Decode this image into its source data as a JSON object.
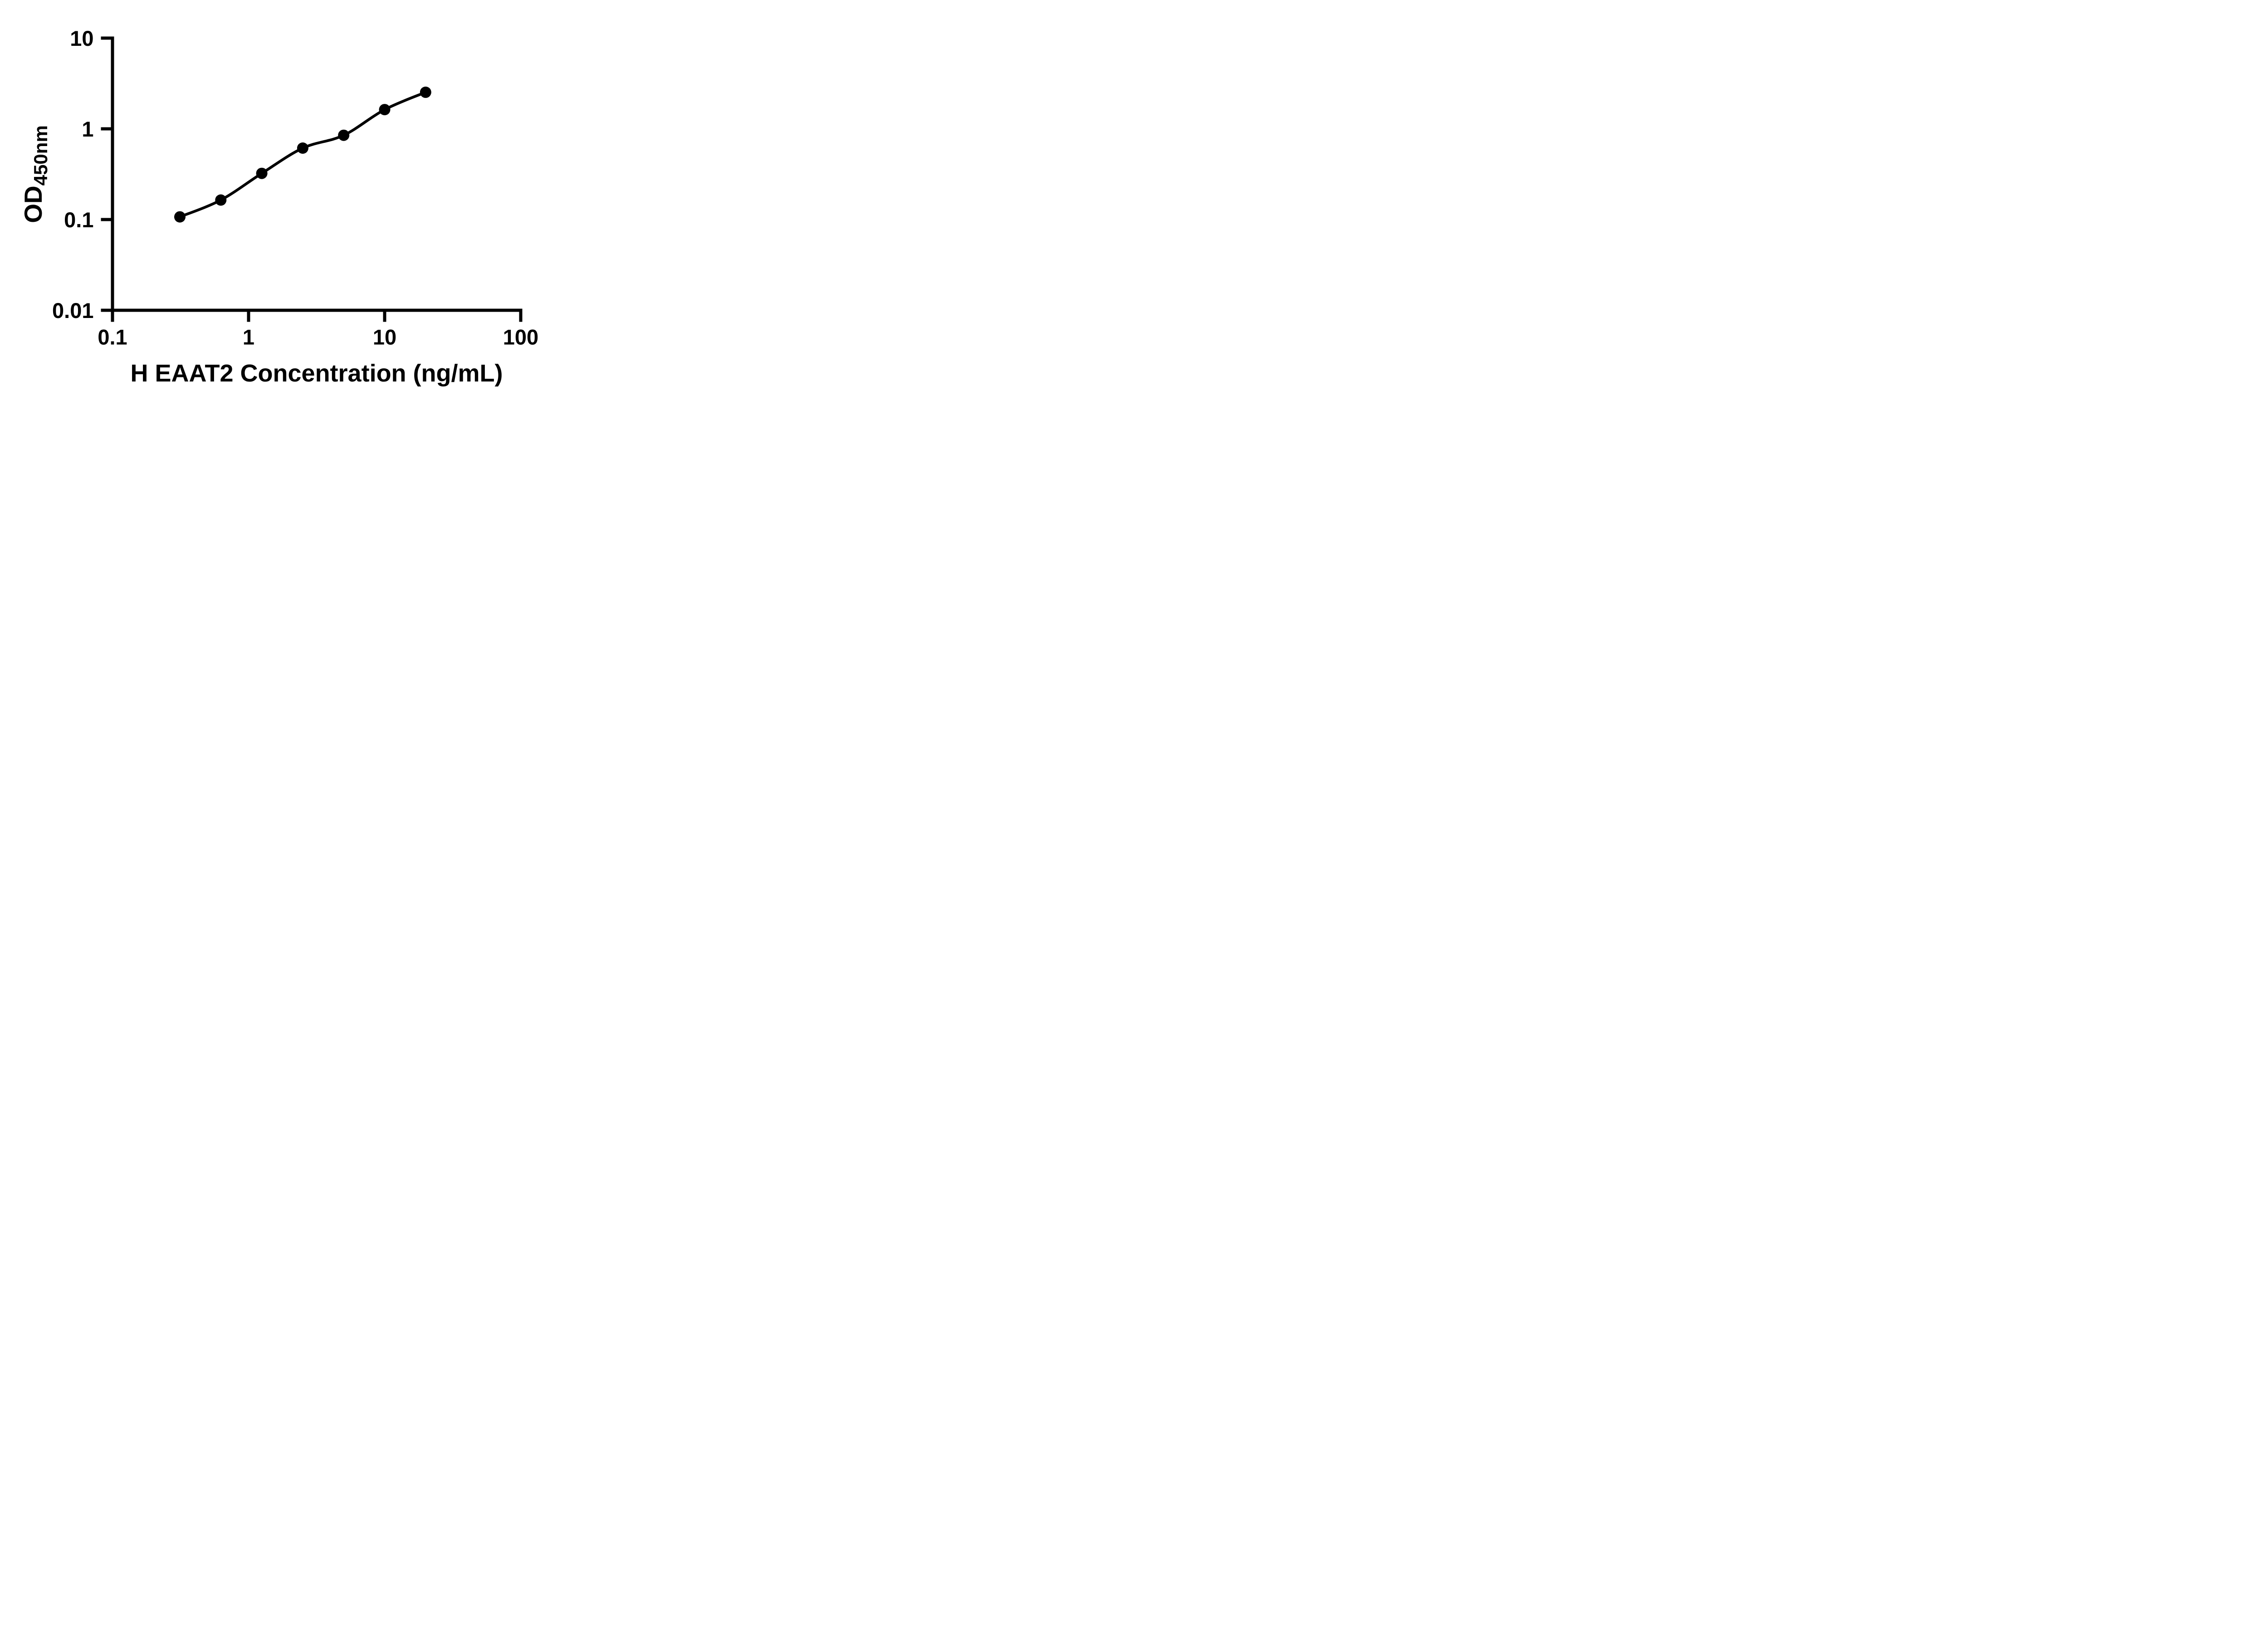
{
  "figure": {
    "background": "#ffffff",
    "ink_color": "#000000"
  },
  "chart_data": {
    "type": "scatter",
    "title": "",
    "xlabel": "H EAAT2 Concentration (ng/mL)",
    "ylabel": "OD450nm",
    "ylabel_main": "OD",
    "ylabel_sub": "450nm",
    "x_scale": "log",
    "y_scale": "log",
    "xlim": [
      0.1,
      100
    ],
    "ylim": [
      0.01,
      10
    ],
    "x_ticks": [
      0.1,
      1,
      10,
      100
    ],
    "x_tick_labels": [
      "0.1",
      "1",
      "10",
      "100"
    ],
    "y_ticks": [
      10,
      1,
      0.1,
      0.01
    ],
    "y_tick_labels": [
      "10",
      "1",
      "0.1",
      "0.01"
    ],
    "grid": false,
    "legend": null,
    "marker": "filled-circle",
    "line": "smooth-through-points",
    "series": [
      {
        "x": [
          0.3125,
          0.625,
          1.25,
          2.5,
          5,
          10,
          20
        ],
        "y": [
          0.107,
          0.164,
          0.323,
          0.613,
          0.849,
          1.63,
          2.53
        ]
      }
    ]
  }
}
